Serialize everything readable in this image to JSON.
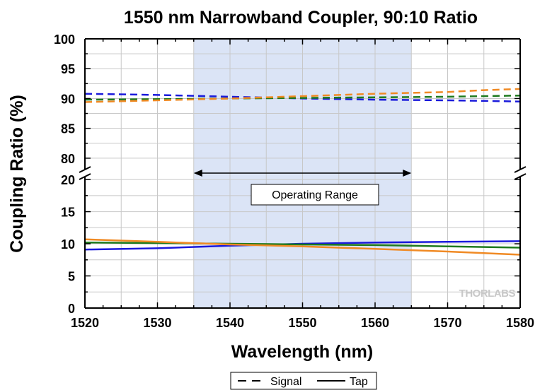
{
  "chart_data": {
    "type": "line",
    "title": "1550 nm Narrowband Coupler, 90:10 Ratio",
    "xlabel": "Wavelength (nm)",
    "ylabel": "Coupling Ratio (%)",
    "xlim": [
      1520,
      1580
    ],
    "x_ticks": [
      "1520",
      "1530",
      "1540",
      "1550",
      "1560",
      "1570",
      "1580"
    ],
    "y_axis_break": true,
    "upper_ylim": [
      77.5,
      100
    ],
    "upper_y_ticks": [
      "80",
      "85",
      "90",
      "95",
      "100"
    ],
    "lower_ylim": [
      0,
      21
    ],
    "lower_y_ticks": [
      "0",
      "5",
      "10",
      "15",
      "20"
    ],
    "grid": true,
    "operating_range": {
      "x": [
        1535,
        1565
      ],
      "label": "Operating Range",
      "color": "#dbe4f6"
    },
    "watermark": "THORLABS",
    "legend": {
      "position": "bottom-center",
      "entries": [
        {
          "label": "Signal",
          "style": "dashed"
        },
        {
          "label": "Tap",
          "style": "solid"
        }
      ]
    },
    "series": [
      {
        "role": "signal",
        "color": "#1a1adb",
        "style": "dashed",
        "x": [
          1520,
          1530,
          1540,
          1550,
          1560,
          1570,
          1575,
          1580
        ],
        "values": [
          90.8,
          90.6,
          90.3,
          90.0,
          89.8,
          89.7,
          89.6,
          89.5
        ]
      },
      {
        "role": "signal",
        "color": "#1e7a1e",
        "style": "dashed",
        "x": [
          1520,
          1530,
          1540,
          1550,
          1560,
          1570,
          1580
        ],
        "values": [
          89.8,
          89.9,
          90.0,
          90.1,
          90.2,
          90.3,
          90.5
        ]
      },
      {
        "role": "signal",
        "color": "#f08a24",
        "style": "dashed",
        "x": [
          1520,
          1530,
          1540,
          1550,
          1560,
          1570,
          1575,
          1580
        ],
        "values": [
          89.4,
          89.7,
          90.0,
          90.4,
          90.8,
          91.1,
          91.4,
          91.6
        ]
      },
      {
        "role": "tap",
        "color": "#1a1adb",
        "style": "solid",
        "x": [
          1520,
          1530,
          1540,
          1550,
          1560,
          1570,
          1580
        ],
        "values": [
          9.1,
          9.3,
          9.7,
          10.0,
          10.2,
          10.3,
          10.4
        ]
      },
      {
        "role": "tap",
        "color": "#1e7a1e",
        "style": "solid",
        "x": [
          1520,
          1530,
          1540,
          1550,
          1560,
          1570,
          1580
        ],
        "values": [
          10.2,
          10.1,
          10.0,
          9.9,
          9.8,
          9.6,
          9.4
        ]
      },
      {
        "role": "tap",
        "color": "#f08a24",
        "style": "solid",
        "x": [
          1520,
          1530,
          1540,
          1550,
          1560,
          1570,
          1580
        ],
        "values": [
          10.7,
          10.3,
          9.9,
          9.6,
          9.2,
          8.8,
          8.3
        ]
      }
    ]
  }
}
